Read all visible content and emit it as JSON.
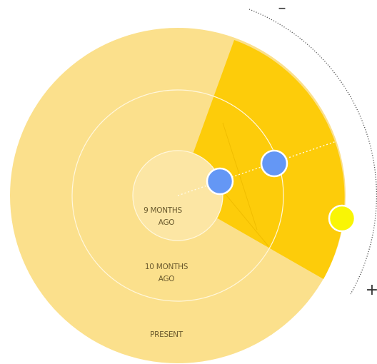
{
  "rings": {
    "inner": {
      "line1": "9 MONTHS",
      "line2": "AGO"
    },
    "middle": {
      "line1": "10 MONTHS",
      "line2": "AGO"
    },
    "outer": {
      "label": "PRESENT"
    }
  },
  "scale": {
    "minus": "–",
    "plus": "+"
  },
  "colors": {
    "disc": "#fbe08c",
    "inner_fill": "#fce6a4",
    "sector": "#fdcc0a",
    "ring_line": "#fff7dd",
    "marker_blue": "#6497f5",
    "marker_yellow": "#f9f505",
    "arc": "#555555"
  },
  "markers": [
    {
      "kind": "blue-circle"
    },
    {
      "kind": "blue-circle"
    },
    {
      "kind": "yellow-circle"
    }
  ]
}
